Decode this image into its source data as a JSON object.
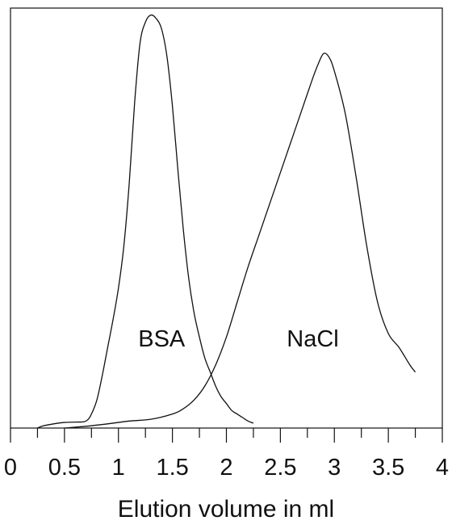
{
  "chart_data": {
    "type": "line",
    "title": "",
    "xlabel": "Elution volume in ml",
    "ylabel": "",
    "xlim": [
      0,
      4
    ],
    "ylim": [
      0,
      1.2
    ],
    "x_ticks": [
      "0",
      "0.5",
      "1",
      "1.5",
      "2",
      "2.5",
      "3",
      "3.5",
      "4"
    ],
    "grid": false,
    "legend": "none",
    "series": [
      {
        "name": "BSA",
        "color": "#111111",
        "x": [
          0.25,
          0.3,
          0.4,
          0.5,
          0.6,
          0.68,
          0.72,
          0.75,
          0.8,
          0.85,
          0.9,
          0.95,
          1.0,
          1.05,
          1.1,
          1.15,
          1.2,
          1.25,
          1.3,
          1.35,
          1.4,
          1.45,
          1.5,
          1.55,
          1.6,
          1.65,
          1.7,
          1.75,
          1.8,
          1.85,
          1.9,
          1.95,
          2.0,
          2.05,
          2.1,
          2.15,
          2.2,
          2.25
        ],
        "y": [
          0.0,
          0.006,
          0.012,
          0.016,
          0.017,
          0.018,
          0.025,
          0.04,
          0.08,
          0.15,
          0.23,
          0.31,
          0.4,
          0.52,
          0.7,
          0.93,
          1.1,
          1.16,
          1.18,
          1.17,
          1.14,
          1.06,
          0.92,
          0.74,
          0.57,
          0.43,
          0.33,
          0.26,
          0.2,
          0.16,
          0.12,
          0.09,
          0.07,
          0.05,
          0.04,
          0.03,
          0.02,
          0.014
        ]
      },
      {
        "name": "NaCl",
        "color": "#111111",
        "x": [
          0.5,
          0.7,
          0.9,
          1.1,
          1.3,
          1.5,
          1.6,
          1.7,
          1.8,
          1.9,
          2.0,
          2.1,
          2.2,
          2.3,
          2.4,
          2.5,
          2.6,
          2.7,
          2.8,
          2.85,
          2.9,
          2.95,
          3.0,
          3.1,
          3.2,
          3.3,
          3.4,
          3.5,
          3.6,
          3.7,
          3.75
        ],
        "y": [
          0.0,
          0.005,
          0.012,
          0.02,
          0.025,
          0.04,
          0.055,
          0.08,
          0.12,
          0.18,
          0.26,
          0.36,
          0.46,
          0.55,
          0.64,
          0.73,
          0.82,
          0.91,
          1.0,
          1.04,
          1.07,
          1.06,
          1.02,
          0.9,
          0.72,
          0.52,
          0.36,
          0.27,
          0.23,
          0.18,
          0.16
        ]
      }
    ],
    "annotations": [
      {
        "text": "BSA",
        "x": 1.4,
        "y": 0.27
      },
      {
        "text": "NaCl",
        "x": 2.8,
        "y": 0.27
      }
    ]
  }
}
